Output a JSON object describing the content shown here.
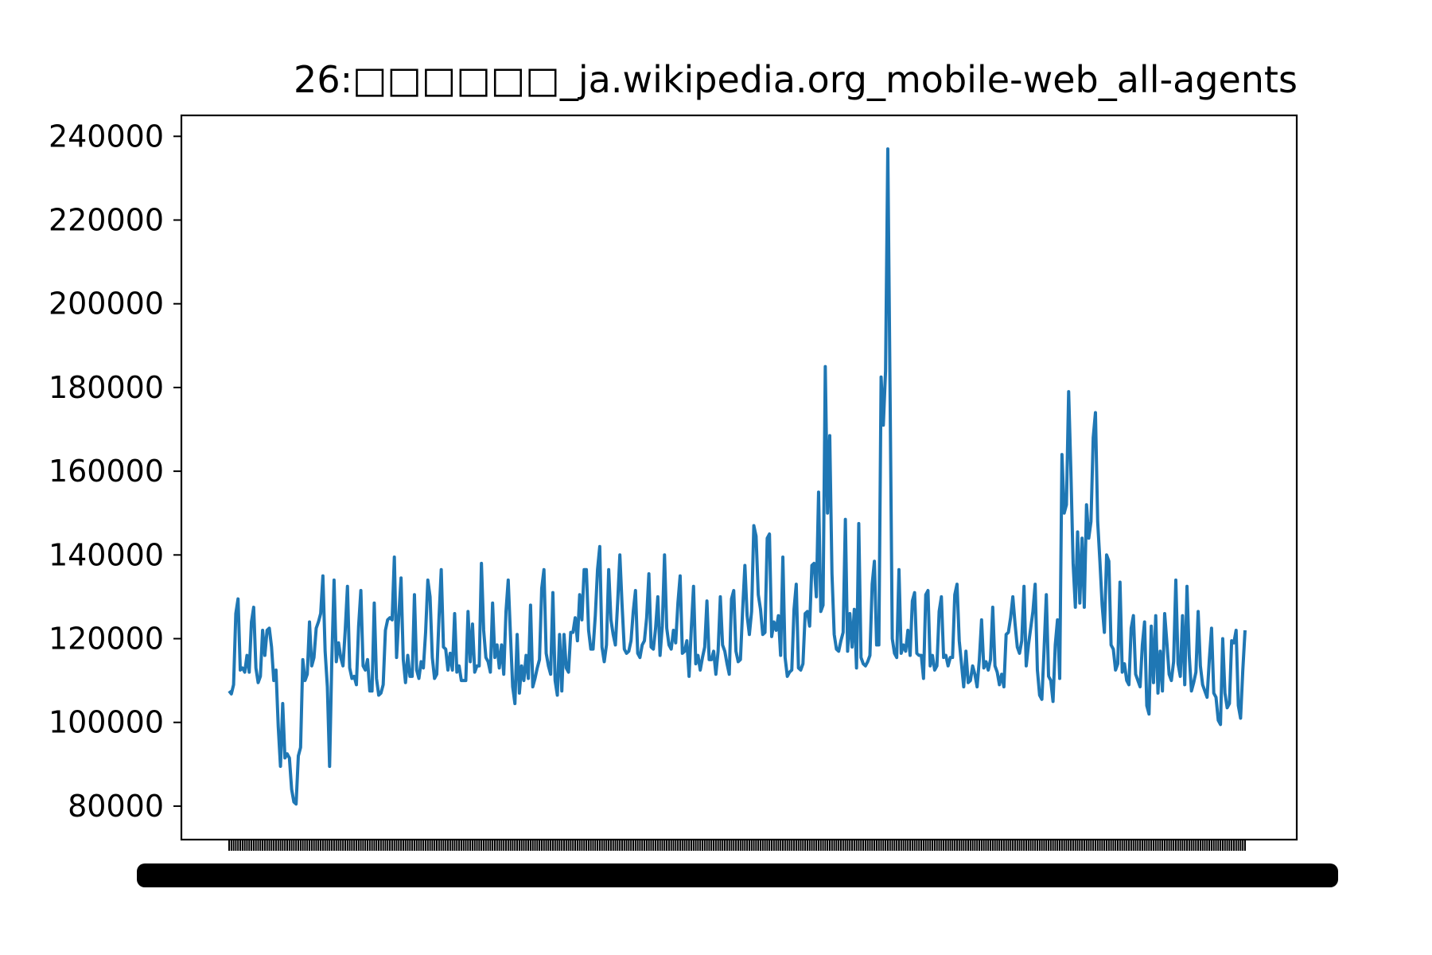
{
  "chart_data": {
    "type": "line",
    "title": "26:□□□□□□_ja.wikipedia.org_mobile-web_all-agents",
    "xlabel": "",
    "ylabel": "",
    "ylim": [
      72000,
      245000
    ],
    "yticks": [
      "80000",
      "100000",
      "120000",
      "140000",
      "160000",
      "180000",
      "200000",
      "220000",
      "240000"
    ],
    "ytick_values": [
      80000,
      100000,
      120000,
      140000,
      160000,
      180000,
      200000,
      220000,
      240000
    ],
    "x_tick_labels_note": "dense overlapping date labels",
    "grid": false,
    "legend": "none",
    "series": [
      {
        "color": "#1f77b4",
        "values": [
          107500,
          106800,
          109000,
          126000,
          129500,
          112500,
          113000,
          112000,
          116000,
          112000,
          124000,
          127500,
          113000,
          109500,
          111000,
          122000,
          116000,
          122000,
          122500,
          118000,
          110000,
          112500,
          99000,
          89500,
          104500,
          91500,
          92500,
          91500,
          84000,
          81000,
          80500,
          92000,
          94000,
          115000,
          110000,
          111500,
          124000,
          113500,
          115500,
          122500,
          124000,
          126000,
          135000,
          117000,
          108500,
          89500,
          115000,
          134000,
          114500,
          119000,
          115500,
          113500,
          122000,
          132500,
          113000,
          110500,
          111000,
          109000,
          123000,
          131500,
          113500,
          112500,
          115000,
          107500,
          107500,
          128500,
          110500,
          106500,
          107000,
          109000,
          122000,
          124500,
          125000,
          124500,
          139500,
          115500,
          125500,
          134500,
          115000,
          109500,
          116000,
          111000,
          111000,
          130500,
          112500,
          110500,
          114500,
          113000,
          121500,
          134000,
          130000,
          115500,
          110500,
          111500,
          125000,
          136500,
          118000,
          117500,
          112500,
          116500,
          112500,
          126000,
          112000,
          113500,
          110000,
          110000,
          110000,
          126500,
          114500,
          123500,
          112000,
          113500,
          113500,
          138000,
          122000,
          115500,
          114500,
          112000,
          128500,
          115500,
          118500,
          113000,
          118500,
          111500,
          126500,
          134000,
          121000,
          108500,
          104500,
          121000,
          107000,
          113500,
          110000,
          116000,
          110500,
          128000,
          108500,
          110500,
          113000,
          115000,
          132000,
          136500,
          116500,
          113500,
          111500,
          131000,
          110000,
          106500,
          121000,
          107500,
          121000,
          113000,
          112000,
          121500,
          121500,
          125000,
          119500,
          130500,
          124500,
          136500,
          136500,
          122000,
          117500,
          117500,
          125500,
          136500,
          142000,
          118000,
          114500,
          118500,
          136500,
          124500,
          121000,
          118500,
          128500,
          140000,
          128000,
          117500,
          116500,
          117000,
          119500,
          126500,
          131500,
          116500,
          115500,
          118500,
          119500,
          125000,
          135500,
          118000,
          117500,
          122500,
          130000,
          116000,
          123000,
          140000,
          122500,
          118500,
          117500,
          122000,
          119000,
          128500,
          135000,
          116500,
          117000,
          119500,
          111000,
          122500,
          132500,
          114000,
          116000,
          112500,
          115500,
          118000,
          129000,
          115000,
          115000,
          117000,
          111500,
          117000,
          130000,
          118500,
          117000,
          114000,
          111500,
          129500,
          131500,
          117000,
          114500,
          115000,
          127000,
          137500,
          125500,
          121000,
          126500,
          147000,
          144500,
          130500,
          127000,
          121000,
          121500,
          144000,
          145000,
          120500,
          124000,
          122000,
          125500,
          116000,
          139500,
          115500,
          111000,
          112000,
          112500,
          127000,
          133000,
          113000,
          112500,
          114000,
          126000,
          126500,
          123000,
          137500,
          138000,
          130000,
          155000,
          126500,
          128000,
          185000,
          150000,
          168500,
          135500,
          121000,
          117500,
          117000,
          119500,
          121500,
          148500,
          117000,
          126000,
          118000,
          127000,
          113000,
          147500,
          115500,
          114000,
          113500,
          114500,
          116000,
          133000,
          138500,
          118500,
          118500,
          182500,
          171000,
          184000,
          237000,
          180000,
          120000,
          116500,
          115500,
          136500,
          116500,
          118500,
          117000,
          122000,
          116000,
          129000,
          131000,
          116500,
          116000,
          116000,
          110500,
          130500,
          131500,
          113500,
          116000,
          112500,
          113500,
          126500,
          130000,
          115500,
          116000,
          113500,
          115500,
          115500,
          130500,
          133000,
          119500,
          114000,
          108500,
          117000,
          109500,
          110000,
          113500,
          111500,
          108500,
          115000,
          124500,
          113000,
          114500,
          112500,
          115000,
          127500,
          113500,
          112000,
          109000,
          111500,
          108500,
          121000,
          121500,
          125000,
          130000,
          123500,
          118000,
          116500,
          119500,
          132500,
          113500,
          118500,
          122500,
          126500,
          133000,
          112500,
          106500,
          105500,
          117500,
          130500,
          111000,
          110000,
          105000,
          118500,
          124500,
          110500,
          164000,
          150000,
          152000,
          179000,
          160000,
          138000,
          127500,
          145500,
          128500,
          144000,
          127500,
          152000,
          144000,
          148000,
          168000,
          174000,
          148000,
          138500,
          128000,
          121500,
          140000,
          138500,
          118500,
          117500,
          112500,
          114000,
          133500,
          112000,
          114000,
          110000,
          109000,
          122500,
          125500,
          111500,
          110000,
          108500,
          118500,
          124000,
          104000,
          102000,
          123000,
          109500,
          125500,
          107000,
          117000,
          107500,
          126000,
          119000,
          111500,
          110000,
          114500,
          134000,
          114000,
          111000,
          125500,
          109000,
          132500,
          116000,
          107500,
          109500,
          112000,
          126500,
          113500,
          109000,
          107500,
          106000,
          115000,
          122500,
          107000,
          106000,
          100500,
          99500,
          120000,
          107000,
          103500,
          104500,
          119500,
          119000,
          122000,
          104000,
          101000,
          112500,
          122000
        ]
      }
    ]
  }
}
